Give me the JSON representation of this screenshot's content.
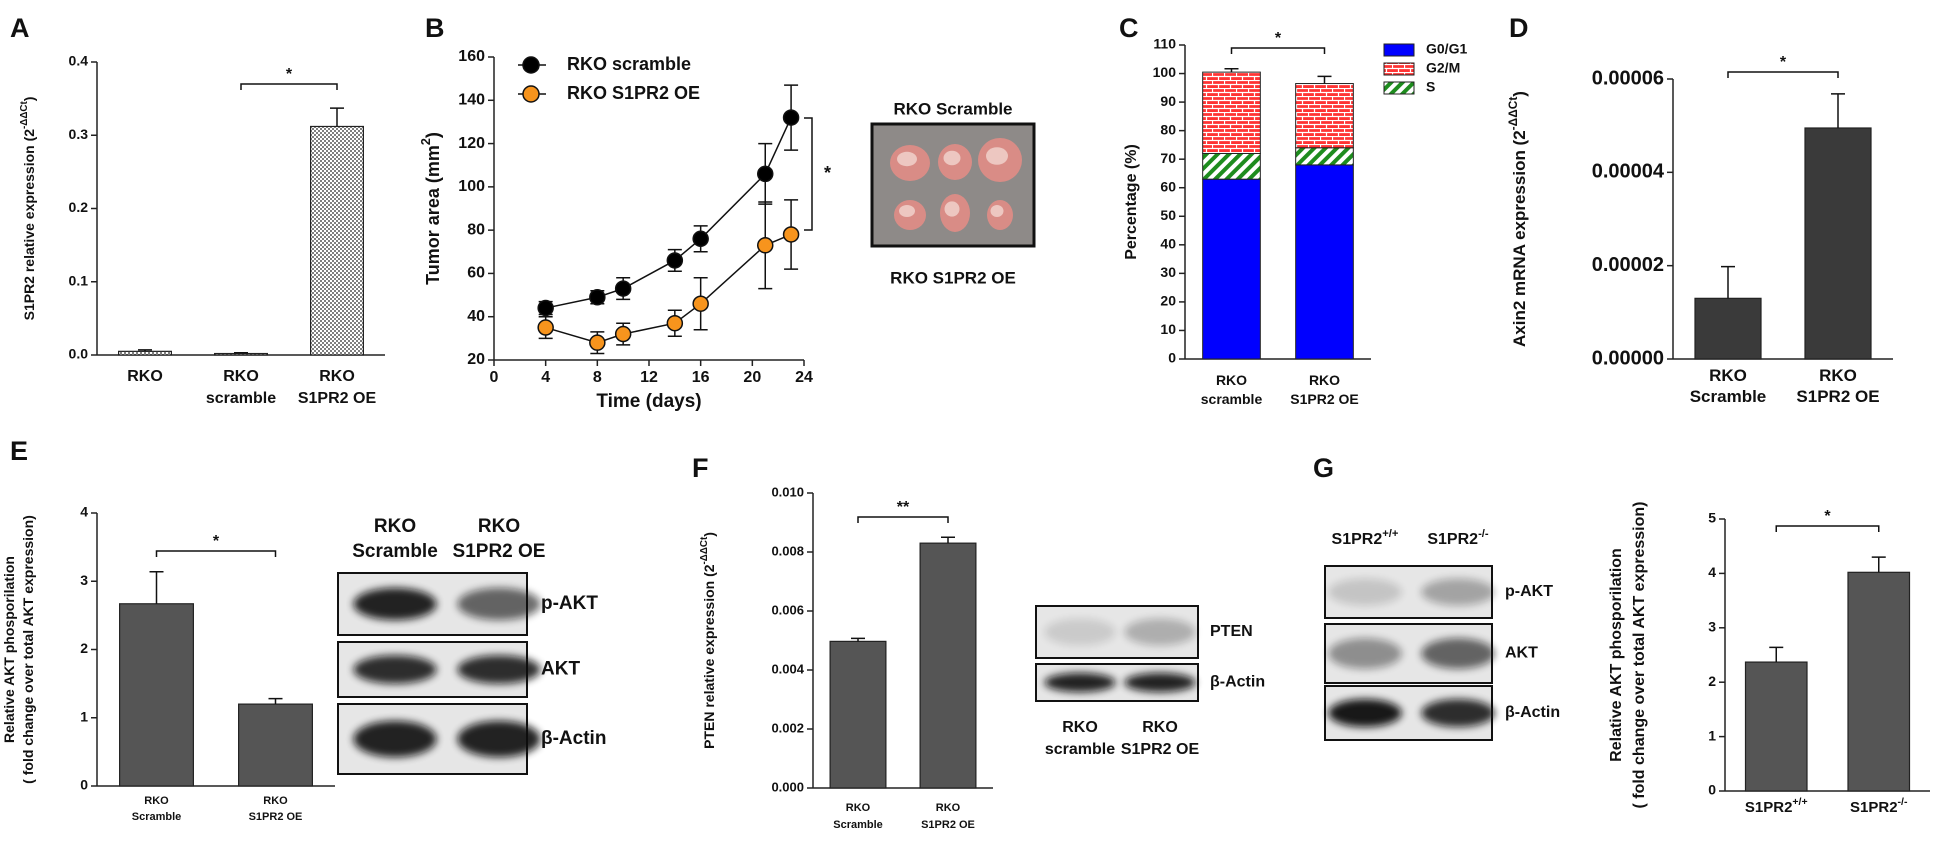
{
  "chart_data": [
    {
      "type": "bar",
      "panel": "A",
      "categories": [
        [
          "RKO"
        ],
        [
          "RKO",
          "scramble"
        ],
        [
          "RKO",
          "S1PR2 OE"
        ]
      ],
      "values": [
        0.005,
        0.002,
        0.312
      ],
      "errors": [
        0.002,
        0.001,
        0.025
      ],
      "color": "#7f7f7f",
      "pattern": "checker",
      "ylim": [
        0,
        0.4
      ],
      "yticks": [
        {
          "value": 0,
          "label": "0.0"
        },
        0.1,
        0.2,
        0.3,
        0.4
      ],
      "ylabel": [
        [
          "S1PR2 relative expression (2",
          "-ΔΔCt",
          ")"
        ]
      ],
      "annotation": "*"
    },
    {
      "type": "line",
      "panel": "B",
      "x": [
        4,
        8,
        10,
        14,
        16,
        21,
        23
      ],
      "series": [
        {
          "name": "RKO  scramble",
          "color": "#000000",
          "values": [
            44,
            49,
            53,
            66,
            76,
            106,
            132
          ],
          "errors": [
            3,
            3,
            5,
            5,
            6,
            14,
            15
          ]
        },
        {
          "name": "RKO S1PR2 OE",
          "color": "#f7941d",
          "values": [
            35,
            28,
            32,
            37,
            46,
            73,
            78
          ],
          "errors": [
            5,
            5,
            5,
            6,
            12,
            20,
            16
          ]
        }
      ],
      "xlim": [
        0,
        24
      ],
      "xticks": [
        0,
        4,
        8,
        12,
        16,
        20,
        24
      ],
      "ylim": [
        20,
        160
      ],
      "yticks": [
        20,
        40,
        60,
        80,
        100,
        120,
        140,
        160
      ],
      "xlabel": "Time (days)",
      "ylabel": [
        [
          "Tumor area (mm",
          "2",
          ")"
        ]
      ],
      "annotation": "*"
    },
    {
      "type": "stacked_bar",
      "panel": "C",
      "categories": [
        [
          "RKO",
          "scramble"
        ],
        [
          "RKO",
          "S1PR2 OE"
        ]
      ],
      "series": [
        {
          "name": "G0/G1",
          "color": "#0000ff",
          "values": [
            63,
            68
          ]
        },
        {
          "name": "S",
          "color": "#1e8c1e",
          "pattern": "hatch",
          "values": [
            9,
            6
          ]
        },
        {
          "name": "G2/M",
          "color": "#ff3333",
          "pattern": "brick",
          "values": [
            28.5,
            22.5
          ],
          "errors": [
            1.2,
            2.5
          ]
        }
      ],
      "ylim": [
        0,
        110
      ],
      "yticks": [
        0,
        10,
        20,
        30,
        40,
        50,
        60,
        70,
        80,
        90,
        100,
        110
      ],
      "ylabel": "Percentage (%)",
      "annotation": "*"
    },
    {
      "type": "bar",
      "panel": "D",
      "categories": [
        [
          "RKO",
          "Scramble"
        ],
        [
          "RKO",
          "S1PR2 OE"
        ]
      ],
      "values": [
        1.3e-05,
        4.95e-05
      ],
      "errors": [
        6.8e-06,
        7.3e-06
      ],
      "color": "#3a3a3a",
      "ylim": [
        0,
        6e-05
      ],
      "yticks": [
        {
          "value": 0,
          "label": "0.00000"
        },
        {
          "value": 2e-05,
          "label": "0.00002"
        },
        {
          "value": 4e-05,
          "label": "0.00004"
        },
        {
          "value": 6e-05,
          "label": "0.00006"
        }
      ],
      "ylabel": [
        [
          "Axin2 mRNA expression (2",
          "-ΔΔCt",
          ")"
        ]
      ],
      "annotation": "*"
    },
    {
      "type": "bar",
      "panel": "E",
      "categories": [
        [
          "RKO",
          "Scramble"
        ],
        [
          "RKO",
          "S1PR2 OE"
        ]
      ],
      "values": [
        2.67,
        1.2
      ],
      "errors": [
        0.47,
        0.08
      ],
      "color": "#555555",
      "ylim": [
        0,
        4
      ],
      "yticks": [
        0,
        1,
        2,
        3,
        4
      ],
      "ylabel": [
        "Relative AKT phosporilation",
        "( fold change over total AKT expression)"
      ],
      "annotation": "*"
    },
    {
      "type": "bar",
      "panel": "F",
      "categories": [
        [
          "RKO",
          "Scramble"
        ],
        [
          "RKO",
          "S1PR2 OE"
        ]
      ],
      "values": [
        0.00497,
        0.0083
      ],
      "errors": [
        0.0001,
        0.0002
      ],
      "color": "#555555",
      "ylim": [
        0,
        0.01
      ],
      "yticks": [
        {
          "value": 0,
          "label": "0.000"
        },
        0.002,
        0.004,
        0.006,
        0.008,
        {
          "value": 0.01,
          "label": "0.010"
        }
      ],
      "ylabel": [
        [
          "PTEN relative expression (2",
          "-ΔΔCt",
          ")"
        ]
      ],
      "annotation": "**"
    },
    {
      "type": "bar",
      "panel": "G",
      "categories": [
        [
          [
            "S1PR2",
            "+/+"
          ]
        ],
        [
          [
            "S1PR2",
            "-/-"
          ]
        ]
      ],
      "values": [
        2.37,
        4.02
      ],
      "errors": [
        0.27,
        0.28
      ],
      "color": "#555555",
      "ylim": [
        0,
        5
      ],
      "yticks": [
        0,
        1,
        2,
        3,
        4,
        5
      ],
      "ylabel": [
        "Relative AKT phosporilation",
        "( fold change over total AKT expression)"
      ],
      "annotation": "*"
    }
  ],
  "images": {
    "tumor_photo": {
      "top": "RKO Scramble",
      "bottom": "RKO S1PR2 OE"
    },
    "blot_E": {
      "columns": [
        [
          "RKO",
          "Scramble"
        ],
        [
          "RKO",
          "S1PR2 OE"
        ]
      ],
      "rows": [
        "p-AKT",
        "AKT",
        "β-Actin"
      ]
    },
    "blot_F": {
      "columns": [
        [
          "RKO",
          "scramble"
        ],
        [
          "RKO",
          "S1PR2 OE"
        ]
      ],
      "rows": [
        "PTEN",
        "β-Actin"
      ]
    },
    "blot_G": {
      "columns": [
        [
          [
            "S1PR2",
            "+/+"
          ]
        ],
        [
          [
            "S1PR2",
            "-/-"
          ]
        ]
      ],
      "rows": [
        "p-AKT",
        "AKT",
        "β-Actin"
      ]
    }
  }
}
